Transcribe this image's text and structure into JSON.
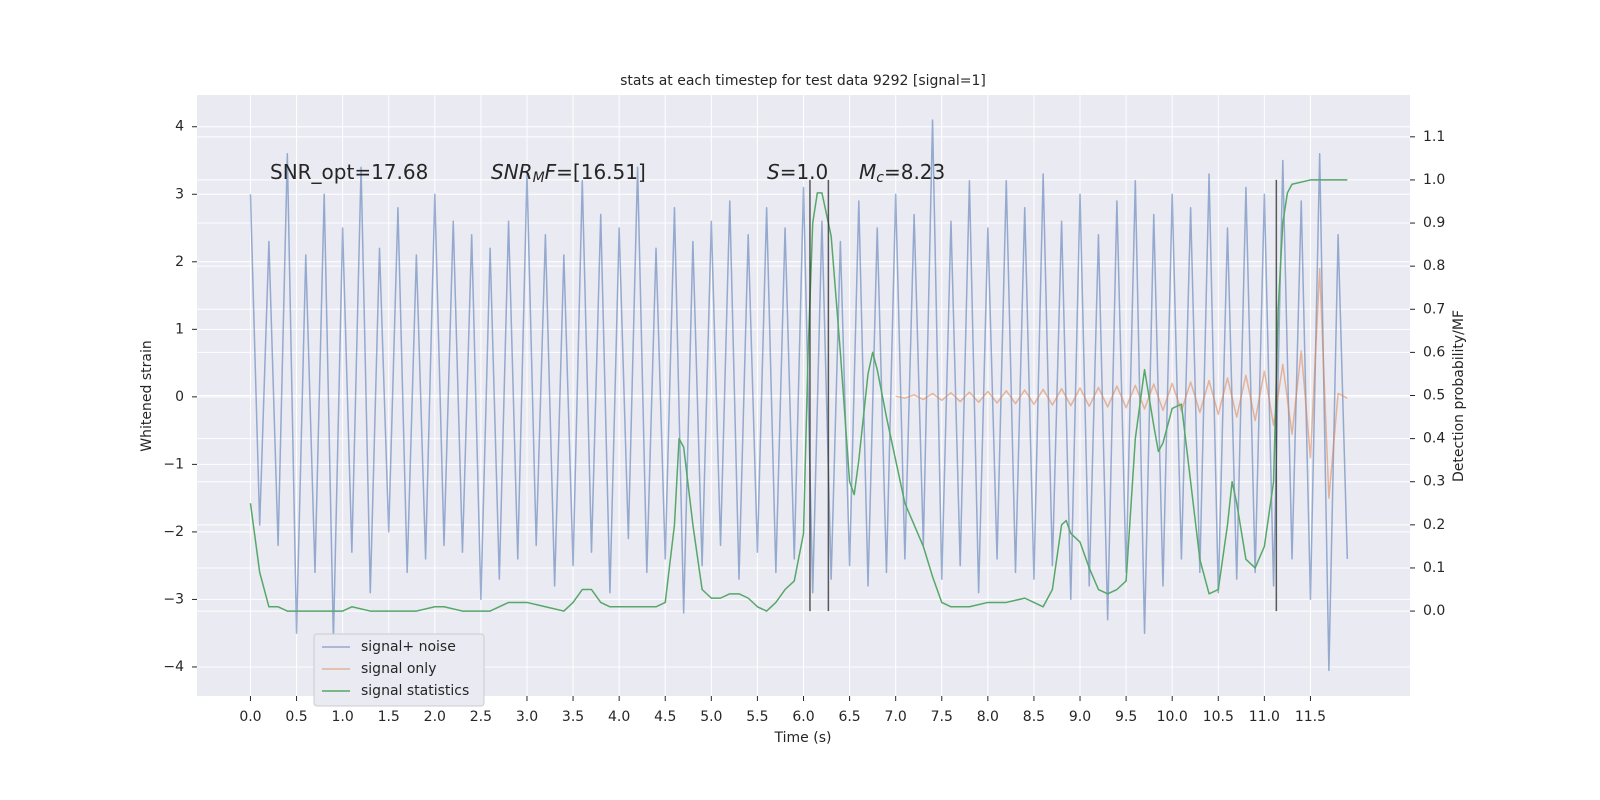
{
  "chart_data": {
    "type": "line",
    "title": "stats at each timestep for test data 9292 [signal=1]",
    "x_label": "Time (s)",
    "y_label": "Whitened strain",
    "y2_label": "Detection probability/MF",
    "xlim": [
      -0.58,
      12.58
    ],
    "ylim": [
      -4.43,
      4.47
    ],
    "y2lim": [
      -0.197,
      1.197
    ],
    "xticks": [
      {
        "value": 0,
        "label": "0.0"
      },
      {
        "value": 0.5,
        "label": "0.5"
      },
      {
        "value": 1,
        "label": "1.0"
      },
      {
        "value": 1.5,
        "label": "1.5"
      },
      {
        "value": 2,
        "label": "2.0"
      },
      {
        "value": 2.5,
        "label": "2.5"
      },
      {
        "value": 3,
        "label": "3.0"
      },
      {
        "value": 3.5,
        "label": "3.5"
      },
      {
        "value": 4,
        "label": "4.0"
      },
      {
        "value": 4.5,
        "label": "4.5"
      },
      {
        "value": 5,
        "label": "5.0"
      },
      {
        "value": 5.5,
        "label": "5.5"
      },
      {
        "value": 6,
        "label": "6.0"
      },
      {
        "value": 6.5,
        "label": "6.5"
      },
      {
        "value": 7,
        "label": "7.0"
      },
      {
        "value": 7.5,
        "label": "7.5"
      },
      {
        "value": 8,
        "label": "8.0"
      },
      {
        "value": 8.5,
        "label": "8.5"
      },
      {
        "value": 9,
        "label": "9.0"
      },
      {
        "value": 9.5,
        "label": "9.5"
      },
      {
        "value": 10,
        "label": "10.0"
      },
      {
        "value": 10.5,
        "label": "10.5"
      },
      {
        "value": 11,
        "label": "11.0"
      },
      {
        "value": 11.5,
        "label": "11.5"
      }
    ],
    "yticks": [
      {
        "value": -4,
        "label": "−4"
      },
      {
        "value": -3,
        "label": "−3"
      },
      {
        "value": -2,
        "label": "−2"
      },
      {
        "value": -1,
        "label": "−1"
      },
      0,
      1,
      2,
      3,
      4
    ],
    "y2ticks": [
      {
        "value": 0,
        "label": "0.0"
      },
      {
        "value": 0.1,
        "label": "0.1"
      },
      {
        "value": 0.2,
        "label": "0.2"
      },
      {
        "value": 0.3,
        "label": "0.3"
      },
      {
        "value": 0.4,
        "label": "0.4"
      },
      {
        "value": 0.5,
        "label": "0.5"
      },
      {
        "value": 0.6,
        "label": "0.6"
      },
      {
        "value": 0.7,
        "label": "0.7"
      },
      {
        "value": 0.8,
        "label": "0.8"
      },
      {
        "value": 0.9,
        "label": "0.9"
      },
      {
        "value": 1,
        "label": "1.0"
      },
      {
        "value": 1.1,
        "label": "1.1"
      }
    ],
    "grid": true,
    "legend": "lower left",
    "series": [
      {
        "name": "signal+ noise",
        "color": "#4c72b0",
        "axis": "y",
        "x": [
          0,
          0.1,
          0.2,
          0.3,
          0.4,
          0.5,
          0.6,
          0.7,
          0.8,
          0.9,
          1,
          1.1,
          1.2,
          1.3,
          1.4,
          1.5,
          1.6,
          1.7,
          1.8,
          1.9,
          2,
          2.1,
          2.2,
          2.3,
          2.4,
          2.5,
          2.6,
          2.7,
          2.8,
          2.9,
          3,
          3.1,
          3.2,
          3.3,
          3.4,
          3.5,
          3.6,
          3.7,
          3.8,
          3.9,
          4,
          4.1,
          4.2,
          4.3,
          4.4,
          4.5,
          4.6,
          4.7,
          4.8,
          4.9,
          5,
          5.1,
          5.2,
          5.3,
          5.4,
          5.5,
          5.6,
          5.7,
          5.8,
          5.9,
          6,
          6.1,
          6.2,
          6.3,
          6.4,
          6.5,
          6.6,
          6.7,
          6.8,
          6.9,
          7,
          7.1,
          7.2,
          7.3,
          7.4,
          7.5,
          7.6,
          7.7,
          7.8,
          7.9,
          8,
          8.1,
          8.2,
          8.3,
          8.4,
          8.5,
          8.6,
          8.7,
          8.8,
          8.9,
          9,
          9.1,
          9.2,
          9.3,
          9.4,
          9.5,
          9.6,
          9.7,
          9.8,
          9.9,
          10,
          10.1,
          10.2,
          10.3,
          10.4,
          10.5,
          10.6,
          10.7,
          10.8,
          10.9,
          11,
          11.1,
          11.2,
          11.3,
          11.4,
          11.5,
          11.6,
          11.7,
          11.8,
          11.9
        ],
        "values": [
          3.0,
          -1.9,
          2.3,
          -2.2,
          3.6,
          -3.5,
          2.1,
          -2.6,
          3.0,
          -3.6,
          2.5,
          -2.3,
          3.4,
          -2.9,
          2.2,
          -2.0,
          2.8,
          -2.6,
          2.1,
          -2.4,
          3.0,
          -2.2,
          2.6,
          -2.3,
          2.4,
          -3.0,
          2.2,
          -2.7,
          2.6,
          -2.4,
          3.3,
          -2.2,
          2.4,
          -2.8,
          2.1,
          -2.5,
          3.2,
          -2.3,
          2.7,
          -2.9,
          2.5,
          -2.1,
          3.4,
          -2.6,
          2.2,
          -2.4,
          2.8,
          -3.2,
          2.3,
          -2.5,
          2.6,
          -2.2,
          2.9,
          -2.7,
          2.4,
          -2.3,
          2.8,
          -2.6,
          2.5,
          -2.4,
          3.1,
          -2.9,
          2.6,
          -2.7,
          2.3,
          -2.5,
          2.9,
          -2.8,
          2.5,
          -2.6,
          3.0,
          -2.4,
          2.7,
          -2.2,
          4.1,
          -2.7,
          2.6,
          -2.5,
          3.2,
          -2.9,
          2.5,
          -2.4,
          3.2,
          -2.6,
          2.8,
          -2.7,
          3.3,
          -2.5,
          2.6,
          -3.0,
          3.0,
          -2.8,
          2.4,
          -3.3,
          2.9,
          -2.6,
          3.2,
          -3.5,
          2.7,
          -2.8,
          3.0,
          -2.4,
          2.8,
          -2.6,
          3.3,
          -2.9,
          2.5,
          -2.7,
          3.1,
          -2.6,
          3.0,
          -2.8,
          3.5,
          -2.4,
          2.9,
          -3.0,
          3.6,
          -4.05,
          2.4,
          -2.4
        ]
      },
      {
        "name": "signal only",
        "color": "#dd8452",
        "axis": "y",
        "x": [
          7,
          7.1,
          7.2,
          7.3,
          7.4,
          7.5,
          7.6,
          7.7,
          7.8,
          7.9,
          8,
          8.1,
          8.2,
          8.3,
          8.4,
          8.5,
          8.6,
          8.7,
          8.8,
          8.9,
          9,
          9.1,
          9.2,
          9.3,
          9.4,
          9.5,
          9.6,
          9.7,
          9.8,
          9.9,
          10,
          10.1,
          10.2,
          10.3,
          10.4,
          10.5,
          10.6,
          10.7,
          10.8,
          10.9,
          11,
          11.1,
          11.2,
          11.3,
          11.4,
          11.5,
          11.6,
          11.7,
          11.8,
          11.9
        ],
        "values": [
          0.01,
          -0.02,
          0.03,
          -0.04,
          0.05,
          -0.05,
          0.06,
          -0.07,
          0.07,
          -0.08,
          0.08,
          -0.09,
          0.09,
          -0.1,
          0.1,
          -0.11,
          0.11,
          -0.12,
          0.12,
          -0.13,
          0.13,
          -0.14,
          0.14,
          -0.15,
          0.16,
          -0.16,
          0.17,
          -0.18,
          0.19,
          -0.2,
          0.2,
          -0.21,
          0.22,
          -0.23,
          0.24,
          -0.26,
          0.28,
          -0.3,
          0.32,
          -0.35,
          0.38,
          -0.42,
          0.48,
          -0.55,
          0.68,
          -0.9,
          1.9,
          -1.5,
          0.05,
          -0.02
        ]
      },
      {
        "name": "signal statistics",
        "color": "#55a868",
        "axis": "y2",
        "x": [
          0,
          0.1,
          0.2,
          0.3,
          0.4,
          0.6,
          0.8,
          1.0,
          1.1,
          1.3,
          1.5,
          1.8,
          2.0,
          2.1,
          2.3,
          2.6,
          2.8,
          3.0,
          3.2,
          3.4,
          3.5,
          3.6,
          3.7,
          3.8,
          3.9,
          4.2,
          4.4,
          4.5,
          4.6,
          4.65,
          4.7,
          4.8,
          4.9,
          5.0,
          5.1,
          5.2,
          5.3,
          5.4,
          5.5,
          5.6,
          5.7,
          5.8,
          5.9,
          6.0,
          6.05,
          6.1,
          6.15,
          6.2,
          6.3,
          6.4,
          6.5,
          6.55,
          6.6,
          6.7,
          6.75,
          6.8,
          6.9,
          7.0,
          7.1,
          7.2,
          7.3,
          7.4,
          7.5,
          7.6,
          7.8,
          8.0,
          8.2,
          8.4,
          8.5,
          8.6,
          8.7,
          8.8,
          8.85,
          8.9,
          9.0,
          9.1,
          9.2,
          9.3,
          9.4,
          9.5,
          9.6,
          9.7,
          9.8,
          9.85,
          9.9,
          10.0,
          10.1,
          10.2,
          10.3,
          10.4,
          10.5,
          10.6,
          10.65,
          10.7,
          10.8,
          10.9,
          11.0,
          11.1,
          11.15,
          11.2,
          11.25,
          11.3,
          11.5,
          11.9
        ],
        "values": [
          0.25,
          0.09,
          0.01,
          0.01,
          0.0,
          0.0,
          0.0,
          0.0,
          0.01,
          0.0,
          0.0,
          0.0,
          0.01,
          0.01,
          0.0,
          0.0,
          0.02,
          0.02,
          0.01,
          0.0,
          0.02,
          0.05,
          0.05,
          0.02,
          0.01,
          0.01,
          0.01,
          0.02,
          0.2,
          0.4,
          0.38,
          0.2,
          0.05,
          0.03,
          0.03,
          0.04,
          0.04,
          0.03,
          0.01,
          0.0,
          0.02,
          0.05,
          0.07,
          0.18,
          0.6,
          0.9,
          0.97,
          0.97,
          0.87,
          0.6,
          0.3,
          0.27,
          0.35,
          0.55,
          0.6,
          0.56,
          0.45,
          0.35,
          0.25,
          0.2,
          0.15,
          0.08,
          0.02,
          0.01,
          0.01,
          0.02,
          0.02,
          0.03,
          0.02,
          0.01,
          0.05,
          0.2,
          0.21,
          0.18,
          0.16,
          0.1,
          0.05,
          0.04,
          0.05,
          0.07,
          0.4,
          0.56,
          0.43,
          0.37,
          0.39,
          0.47,
          0.48,
          0.3,
          0.12,
          0.04,
          0.05,
          0.2,
          0.3,
          0.25,
          0.12,
          0.1,
          0.15,
          0.3,
          0.7,
          0.9,
          0.97,
          0.99,
          1.0,
          1.0
        ]
      }
    ],
    "vlines": [
      6.07,
      6.27,
      11.13
    ],
    "vline_range": [
      0,
      1.0
    ],
    "annotations": [
      [
        {
          "text": "SNR_opt=17.68"
        }
      ],
      [
        {
          "text": "SNR",
          "italic": true
        },
        {
          "text": "M",
          "italic": true,
          "sub": true
        },
        {
          "text": "F",
          "italic": true
        },
        {
          "text": "=[16.51]"
        }
      ],
      [
        {
          "text": "S",
          "italic": true
        },
        {
          "text": "=1.0"
        }
      ],
      [
        {
          "text": "M",
          "italic": true
        },
        {
          "text": "c",
          "italic": true,
          "sub": true
        },
        {
          "text": "=8.23"
        }
      ]
    ]
  }
}
